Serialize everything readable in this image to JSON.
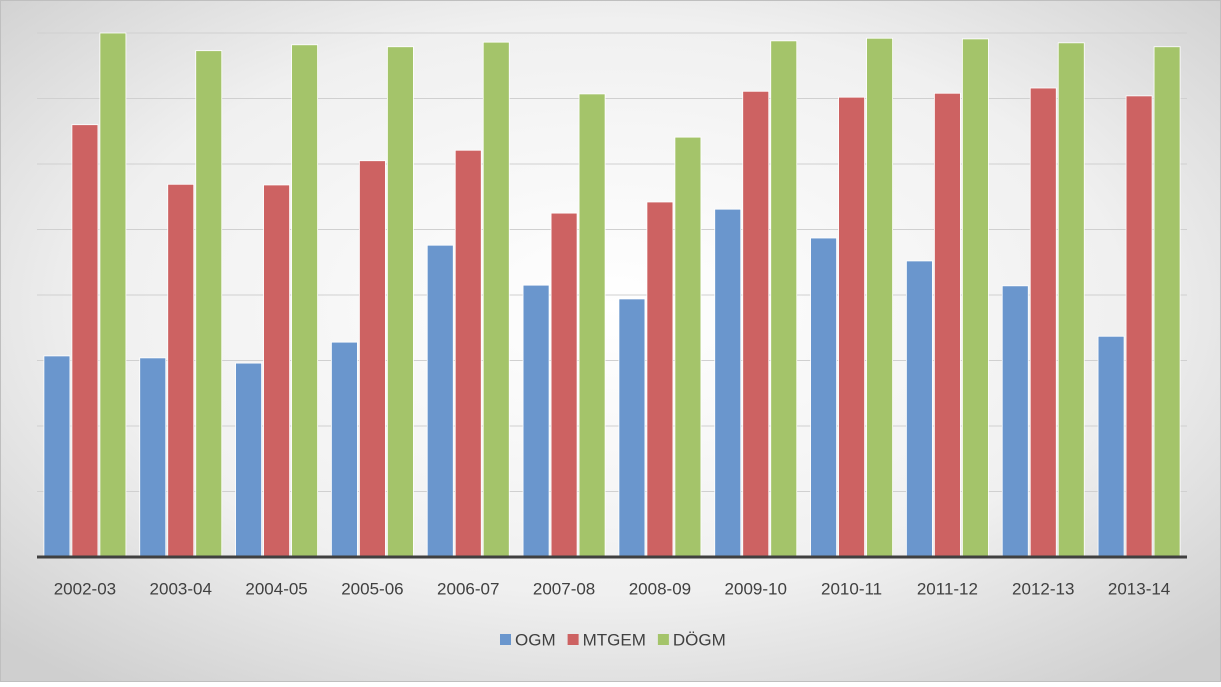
{
  "chart_data": {
    "type": "bar",
    "categories": [
      "2002-03",
      "2003-04",
      "2004-05",
      "2005-06",
      "2006-07",
      "2007-08",
      "2008-09",
      "2009-10",
      "2010-11",
      "2011-12",
      "2012-13",
      "2013-14"
    ],
    "series": [
      {
        "name": "OGM",
        "color": "#6a96cd",
        "values": [
          3.07,
          3.04,
          2.96,
          3.28,
          4.76,
          4.15,
          3.94,
          5.31,
          4.87,
          4.52,
          4.14,
          3.37
        ]
      },
      {
        "name": "MTGEM",
        "color": "#cd6262",
        "values": [
          6.6,
          5.69,
          5.68,
          6.05,
          6.21,
          5.25,
          5.42,
          7.11,
          7.02,
          7.08,
          7.16,
          7.04
        ]
      },
      {
        "name": "DÖGM",
        "color": "#a4c46a",
        "values": [
          8.0,
          7.73,
          7.82,
          7.79,
          7.86,
          7.07,
          6.41,
          7.88,
          7.92,
          7.91,
          7.85,
          7.79
        ]
      }
    ],
    "ylim": [
      0,
      8
    ],
    "yticks": [
      1,
      2,
      3,
      4,
      5,
      6,
      7,
      8
    ],
    "grid": true,
    "legend": "bottom"
  }
}
